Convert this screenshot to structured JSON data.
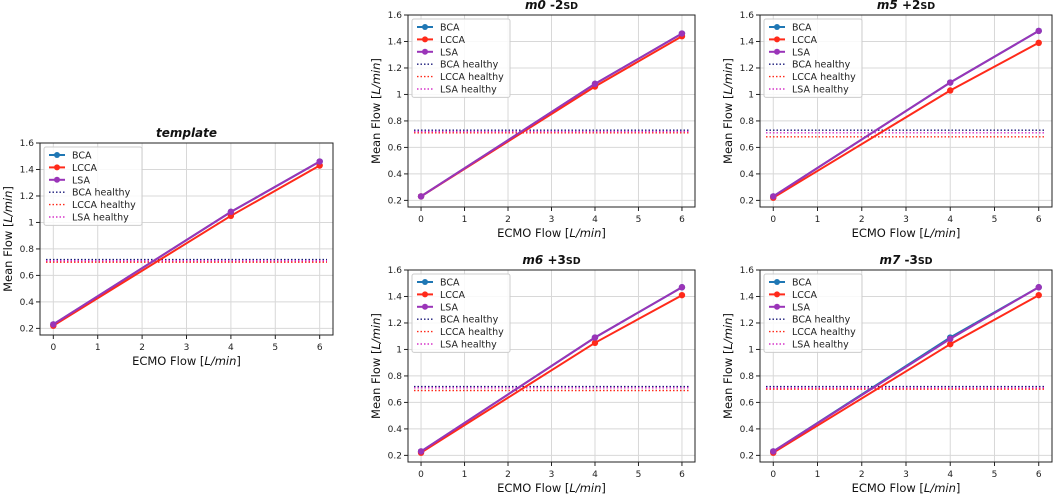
{
  "chart_data": [
    {
      "id": "template",
      "type": "line",
      "title": "template",
      "xlabel": "ECMO Flow [L/min]",
      "ylabel": "Mean Flow [L/min]",
      "xlim": [
        -0.3,
        6.3
      ],
      "ylim": [
        0.15,
        1.6
      ],
      "xticks": [
        0,
        1,
        2,
        3,
        4,
        5,
        6
      ],
      "yticks": [
        0.2,
        0.4,
        0.6,
        0.8,
        1.0,
        1.2,
        1.4,
        1.6
      ],
      "grid": true,
      "legend": "top-left",
      "x": [
        0,
        4,
        6
      ],
      "series": [
        {
          "name": "BCA",
          "values": [
            0.23,
            1.08,
            1.46
          ],
          "color": "#1f77b4"
        },
        {
          "name": "LCCA",
          "values": [
            0.22,
            1.05,
            1.43
          ],
          "color": "#ff2a1a"
        },
        {
          "name": "LSA",
          "values": [
            0.23,
            1.08,
            1.46
          ],
          "color": "#9a34b8"
        }
      ],
      "healthy": [
        {
          "name": "BCA healthy",
          "value": 0.72,
          "color": "#1a1a7a"
        },
        {
          "name": "LCCA healthy",
          "value": 0.7,
          "color": "#ff2a1a"
        },
        {
          "name": "LSA healthy",
          "value": 0.71,
          "color": "#d633c9"
        }
      ]
    },
    {
      "id": "m0",
      "type": "line",
      "title": "m0 -2SD",
      "xlabel": "ECMO Flow [L/min]",
      "ylabel": "Mean Flow [L/min]",
      "xlim": [
        -0.3,
        6.3
      ],
      "ylim": [
        0.15,
        1.6
      ],
      "xticks": [
        0,
        1,
        2,
        3,
        4,
        5,
        6
      ],
      "yticks": [
        0.2,
        0.4,
        0.6,
        0.8,
        1.0,
        1.2,
        1.4,
        1.6
      ],
      "grid": true,
      "legend": "top-left",
      "x": [
        0,
        4,
        6
      ],
      "series": [
        {
          "name": "BCA",
          "values": [
            0.23,
            1.08,
            1.46
          ],
          "color": "#1f77b4"
        },
        {
          "name": "LCCA",
          "values": [
            0.23,
            1.06,
            1.44
          ],
          "color": "#ff2a1a"
        },
        {
          "name": "LSA",
          "values": [
            0.23,
            1.08,
            1.46
          ],
          "color": "#9a34b8"
        }
      ],
      "healthy": [
        {
          "name": "BCA healthy",
          "value": 0.73,
          "color": "#1a1a7a"
        },
        {
          "name": "LCCA healthy",
          "value": 0.71,
          "color": "#ff2a1a"
        },
        {
          "name": "LSA healthy",
          "value": 0.72,
          "color": "#d633c9"
        }
      ]
    },
    {
      "id": "m5",
      "type": "line",
      "title": "m5 +2SD",
      "xlabel": "ECMO Flow [L/min]",
      "ylabel": "Mean Flow [L/min]",
      "xlim": [
        -0.3,
        6.3
      ],
      "ylim": [
        0.15,
        1.6
      ],
      "xticks": [
        0,
        1,
        2,
        3,
        4,
        5,
        6
      ],
      "yticks": [
        0.2,
        0.4,
        0.6,
        0.8,
        1.0,
        1.2,
        1.4,
        1.6
      ],
      "grid": true,
      "legend": "top-left",
      "x": [
        0,
        4,
        6
      ],
      "series": [
        {
          "name": "BCA",
          "values": [
            0.23,
            1.09,
            1.48
          ],
          "color": "#1f77b4"
        },
        {
          "name": "LCCA",
          "values": [
            0.22,
            1.03,
            1.39
          ],
          "color": "#ff2a1a"
        },
        {
          "name": "LSA",
          "values": [
            0.23,
            1.09,
            1.48
          ],
          "color": "#9a34b8"
        }
      ],
      "healthy": [
        {
          "name": "BCA healthy",
          "value": 0.73,
          "color": "#1a1a7a"
        },
        {
          "name": "LCCA healthy",
          "value": 0.68,
          "color": "#ff2a1a"
        },
        {
          "name": "LSA healthy",
          "value": 0.71,
          "color": "#d633c9"
        }
      ]
    },
    {
      "id": "m6",
      "type": "line",
      "title": "m6 +3SD",
      "xlabel": "ECMO Flow [L/min]",
      "ylabel": "Mean Flow [L/min]",
      "xlim": [
        -0.3,
        6.3
      ],
      "ylim": [
        0.15,
        1.6
      ],
      "xticks": [
        0,
        1,
        2,
        3,
        4,
        5,
        6
      ],
      "yticks": [
        0.2,
        0.4,
        0.6,
        0.8,
        1.0,
        1.2,
        1.4,
        1.6
      ],
      "grid": true,
      "legend": "top-left",
      "x": [
        0,
        4,
        6
      ],
      "series": [
        {
          "name": "BCA",
          "values": [
            0.23,
            1.09,
            1.47
          ],
          "color": "#1f77b4"
        },
        {
          "name": "LCCA",
          "values": [
            0.22,
            1.05,
            1.41
          ],
          "color": "#ff2a1a"
        },
        {
          "name": "LSA",
          "values": [
            0.23,
            1.09,
            1.47
          ],
          "color": "#9a34b8"
        }
      ],
      "healthy": [
        {
          "name": "BCA healthy",
          "value": 0.72,
          "color": "#1a1a7a"
        },
        {
          "name": "LCCA healthy",
          "value": 0.69,
          "color": "#ff2a1a"
        },
        {
          "name": "LSA healthy",
          "value": 0.71,
          "color": "#d633c9"
        }
      ]
    },
    {
      "id": "m7",
      "type": "line",
      "title": "m7 -3SD",
      "xlabel": "ECMO Flow [L/min]",
      "ylabel": "Mean Flow [L/min]",
      "xlim": [
        -0.3,
        6.3
      ],
      "ylim": [
        0.15,
        1.6
      ],
      "xticks": [
        0,
        1,
        2,
        3,
        4,
        5,
        6
      ],
      "yticks": [
        0.2,
        0.4,
        0.6,
        0.8,
        1.0,
        1.2,
        1.4,
        1.6
      ],
      "grid": true,
      "legend": "top-left",
      "x": [
        0,
        4,
        6
      ],
      "series": [
        {
          "name": "BCA",
          "values": [
            0.23,
            1.09,
            1.47
          ],
          "color": "#1f77b4"
        },
        {
          "name": "LCCA",
          "values": [
            0.22,
            1.04,
            1.41
          ],
          "color": "#ff2a1a"
        },
        {
          "name": "LSA",
          "values": [
            0.23,
            1.08,
            1.47
          ],
          "color": "#9a34b8"
        }
      ],
      "healthy": [
        {
          "name": "BCA healthy",
          "value": 0.72,
          "color": "#1a1a7a"
        },
        {
          "name": "LCCA healthy",
          "value": 0.7,
          "color": "#ff2a1a"
        },
        {
          "name": "LSA healthy",
          "value": 0.71,
          "color": "#d633c9"
        }
      ]
    }
  ]
}
